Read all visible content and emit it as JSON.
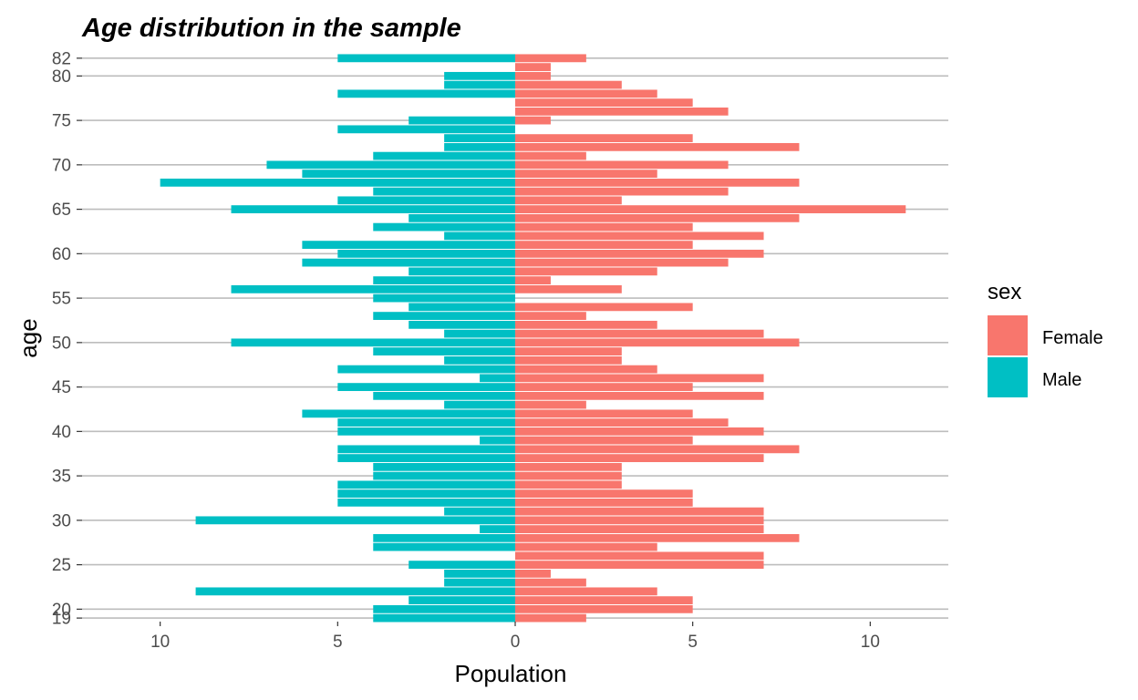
{
  "chart_data": {
    "type": "bar",
    "orientation": "horizontal",
    "layout": "population-pyramid",
    "title": "Age distribution in the sample",
    "xlabel": "Population",
    "ylabel": "age",
    "xlim": [
      -12.2,
      12.2
    ],
    "ylim": [
      18.6,
      82.6
    ],
    "x_ticks": [
      -10,
      -5,
      0,
      5,
      10
    ],
    "x_tick_labels": [
      "10",
      "5",
      "0",
      "5",
      "10"
    ],
    "y_ticks": [
      19,
      20,
      25,
      30,
      35,
      40,
      45,
      50,
      55,
      60,
      65,
      70,
      75,
      80,
      82
    ],
    "y_tick_labels": [
      "19",
      "20",
      "25",
      "30",
      "35",
      "40",
      "45",
      "50",
      "55",
      "60",
      "65",
      "70",
      "75",
      "80",
      "82"
    ],
    "grid": "major-only",
    "legend": {
      "title": "sex",
      "placement": "right"
    },
    "ages": [
      19,
      20,
      21,
      22,
      23,
      24,
      25,
      26,
      27,
      28,
      29,
      30,
      31,
      32,
      33,
      34,
      35,
      36,
      37,
      38,
      39,
      40,
      41,
      42,
      43,
      44,
      45,
      46,
      47,
      48,
      49,
      50,
      51,
      52,
      53,
      54,
      55,
      56,
      57,
      58,
      59,
      60,
      61,
      62,
      63,
      64,
      65,
      66,
      67,
      68,
      69,
      70,
      71,
      72,
      73,
      74,
      75,
      76,
      77,
      78,
      79,
      80,
      81,
      82
    ],
    "series": [
      {
        "name": "Female",
        "color": "#F8766D",
        "values": [
          2,
          5,
          5,
          4,
          2,
          1,
          7,
          7,
          4,
          8,
          7,
          7,
          7,
          5,
          5,
          3,
          3,
          3,
          7,
          8,
          5,
          7,
          6,
          5,
          2,
          7,
          5,
          7,
          4,
          3,
          3,
          8,
          7,
          4,
          2,
          5,
          0,
          3,
          1,
          4,
          6,
          7,
          5,
          7,
          5,
          8,
          11,
          3,
          6,
          8,
          4,
          6,
          2,
          8,
          5,
          0,
          1,
          6,
          5,
          4,
          3,
          1,
          1,
          2
        ]
      },
      {
        "name": "Male",
        "color": "#00BFC4",
        "values": [
          4,
          4,
          3,
          9,
          2,
          2,
          3,
          0,
          4,
          4,
          1,
          9,
          2,
          5,
          5,
          5,
          4,
          4,
          5,
          5,
          1,
          5,
          5,
          6,
          2,
          4,
          5,
          1,
          5,
          2,
          4,
          8,
          2,
          3,
          4,
          3,
          4,
          8,
          4,
          3,
          6,
          5,
          6,
          2,
          4,
          3,
          8,
          5,
          4,
          10,
          6,
          7,
          4,
          2,
          2,
          5,
          3,
          0,
          0,
          5,
          2,
          2,
          0,
          5
        ]
      }
    ]
  }
}
